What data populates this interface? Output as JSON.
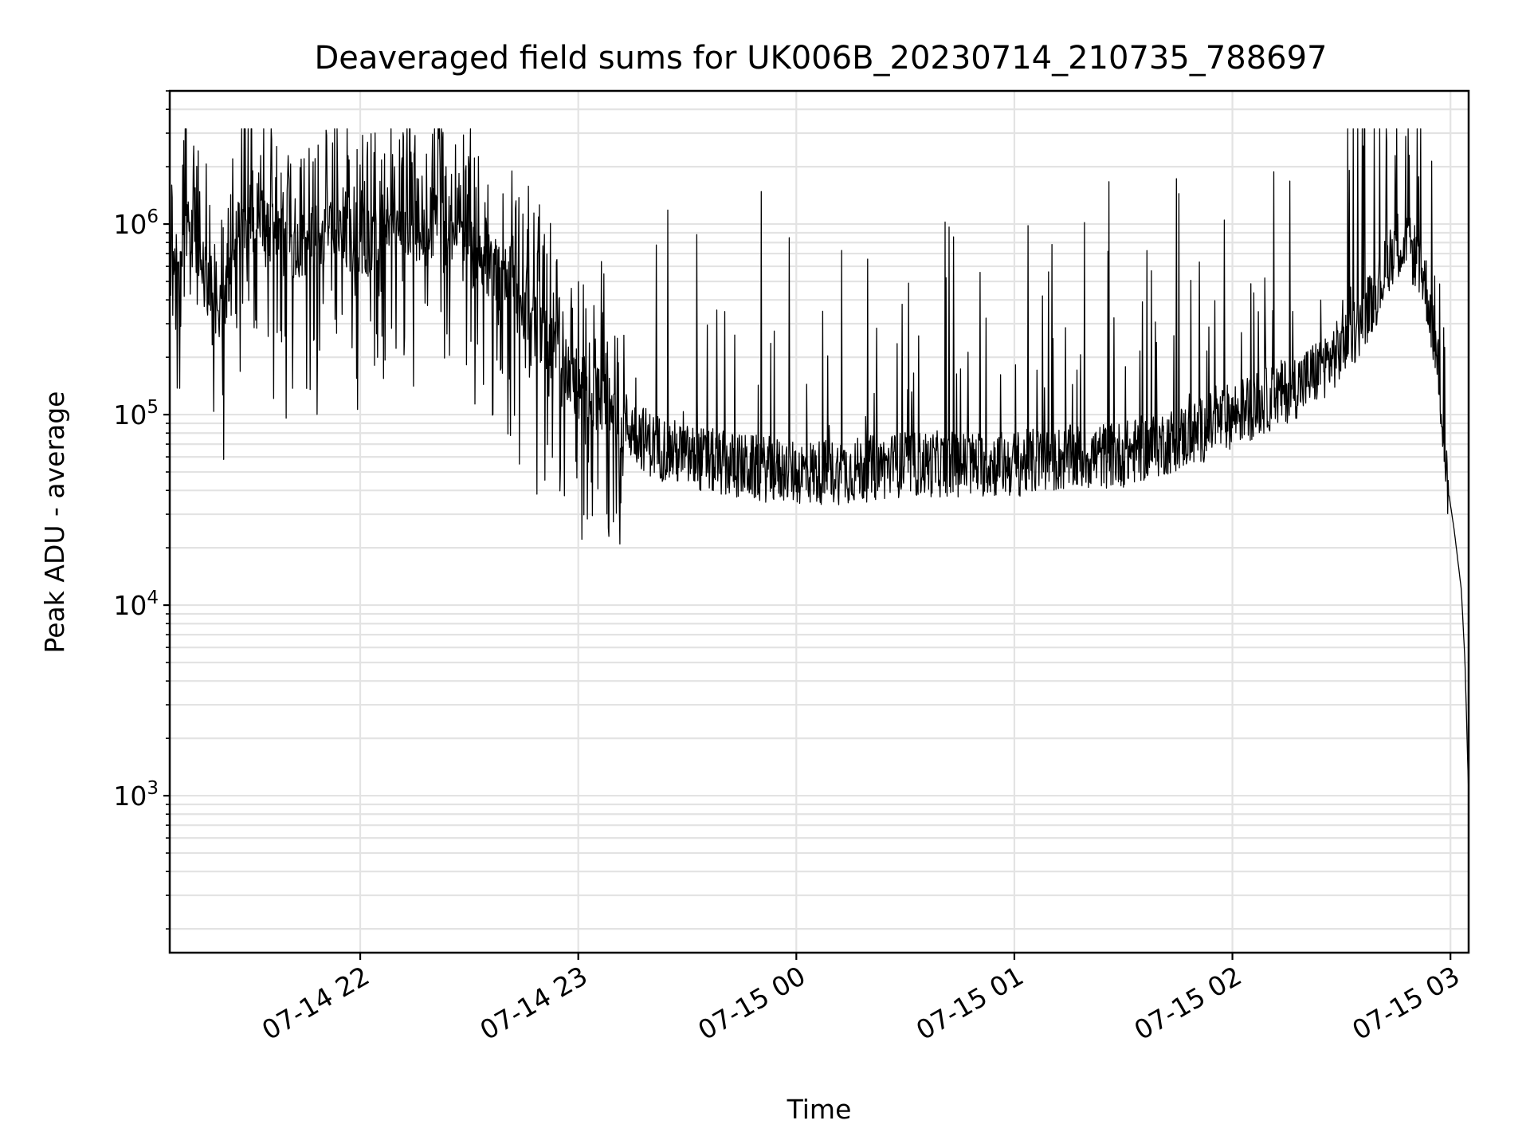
{
  "chart_data": {
    "type": "line",
    "title": "Deaveraged field sums for UK006B_20230714_210735_788697",
    "xlabel": "Time",
    "ylabel": "Peak ADU - average",
    "x_scale": "time",
    "y_scale": "log",
    "xlim": [
      "2023-07-14 21:07:35",
      "2023-07-15 03:05:00"
    ],
    "ylim": [
      150,
      5000000
    ],
    "x_ticks": [
      {
        "value": "2023-07-14 22:00",
        "label": "07-14 22"
      },
      {
        "value": "2023-07-14 23:00",
        "label": "07-14 23"
      },
      {
        "value": "2023-07-15 00:00",
        "label": "07-15 00"
      },
      {
        "value": "2023-07-15 01:00",
        "label": "07-15 01"
      },
      {
        "value": "2023-07-15 02:00",
        "label": "07-15 02"
      },
      {
        "value": "2023-07-15 03:00",
        "label": "07-15 03"
      }
    ],
    "y_ticks": [
      {
        "value": 1000,
        "base": "10",
        "exp": "3"
      },
      {
        "value": 10000,
        "base": "10",
        "exp": "4"
      },
      {
        "value": 100000,
        "base": "10",
        "exp": "5"
      },
      {
        "value": 1000000,
        "base": "10",
        "exp": "6"
      }
    ],
    "grid": true,
    "line_color": "#000000",
    "series": [
      {
        "x": [
          "2023-07-14 21:07",
          "2023-07-14 21:10",
          "2023-07-14 21:13",
          "2023-07-14 21:16",
          "2023-07-14 21:20",
          "2023-07-14 21:22",
          "2023-07-14 21:25",
          "2023-07-14 21:30",
          "2023-07-14 21:35",
          "2023-07-14 21:40",
          "2023-07-14 21:45",
          "2023-07-14 21:50",
          "2023-07-14 21:55",
          "2023-07-14 22:00",
          "2023-07-14 22:10",
          "2023-07-14 22:20",
          "2023-07-14 22:30",
          "2023-07-14 22:40",
          "2023-07-14 22:50",
          "2023-07-14 23:00",
          "2023-07-14 23:10",
          "2023-07-14 23:20",
          "2023-07-14 23:30",
          "2023-07-14 23:40",
          "2023-07-14 23:50",
          "2023-07-15 00:00",
          "2023-07-15 00:10",
          "2023-07-15 00:20",
          "2023-07-15 00:30",
          "2023-07-15 00:40",
          "2023-07-15 00:50",
          "2023-07-15 01:00",
          "2023-07-15 01:10",
          "2023-07-15 01:20",
          "2023-07-15 01:30",
          "2023-07-15 01:40",
          "2023-07-15 01:50",
          "2023-07-15 02:00",
          "2023-07-15 02:10",
          "2023-07-15 02:20",
          "2023-07-15 02:25",
          "2023-07-15 02:30",
          "2023-07-15 02:35",
          "2023-07-15 02:40",
          "2023-07-15 02:45",
          "2023-07-15 02:50",
          "2023-07-15 02:53",
          "2023-07-15 02:55",
          "2023-07-15 02:57",
          "2023-07-15 02:59",
          "2023-07-15 03:01",
          "2023-07-15 03:03",
          "2023-07-15 03:04",
          "2023-07-15 03:05"
        ],
        "values": [
          500000,
          700000,
          900000,
          600000,
          400000,
          300000,
          800000,
          1200000,
          900000,
          700000,
          800000,
          900000,
          850000,
          800000,
          900000,
          1000000,
          700000,
          500000,
          250000,
          150000,
          100000,
          70000,
          60000,
          55000,
          52000,
          50000,
          50000,
          52000,
          55000,
          55000,
          55000,
          55000,
          58000,
          60000,
          62000,
          70000,
          80000,
          100000,
          120000,
          150000,
          180000,
          220000,
          300000,
          450000,
          800000,
          700000,
          500000,
          300000,
          150000,
          45000,
          25000,
          12000,
          5000,
          1000
        ]
      }
    ]
  }
}
